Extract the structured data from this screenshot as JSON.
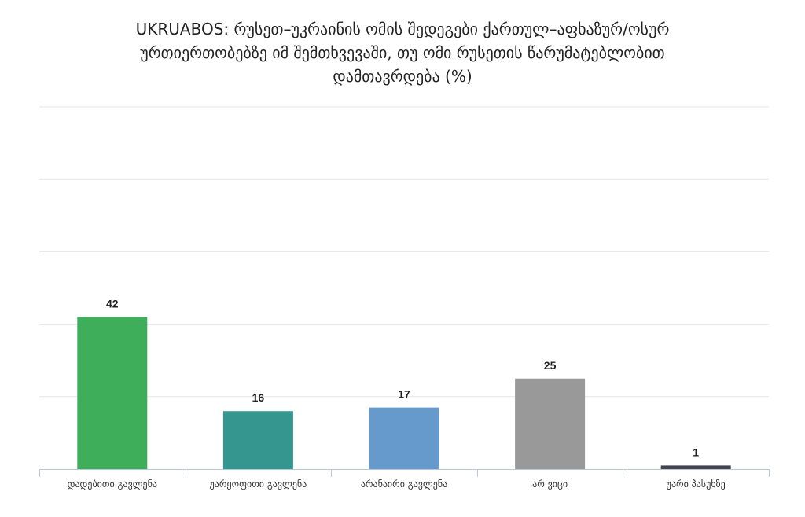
{
  "chart_data": {
    "type": "bar",
    "title_lines": [
      "UKRUABOS: რუსეთ–უკრაინის ომის შედეგები ქართულ–აფხაზურ/ოსურ",
      "ურთიერთობებზე იმ შემთხვევაში, თუ ომი რუსეთის წარუმატებლობით",
      "დამთავრდება (%)"
    ],
    "categories": [
      "დადებითი გავლენა",
      "უარყოფითი გავლენა",
      "არანაირი გავლენა",
      "არ ვიცი",
      "უარი პასუხზე"
    ],
    "values": [
      42,
      16,
      17,
      25,
      1
    ],
    "colors": [
      "#3fae5a",
      "#35958f",
      "#6699cc",
      "#999999",
      "#444450"
    ],
    "ylim": [
      0,
      100
    ],
    "grid": true,
    "xlabel": "",
    "ylabel": ""
  }
}
